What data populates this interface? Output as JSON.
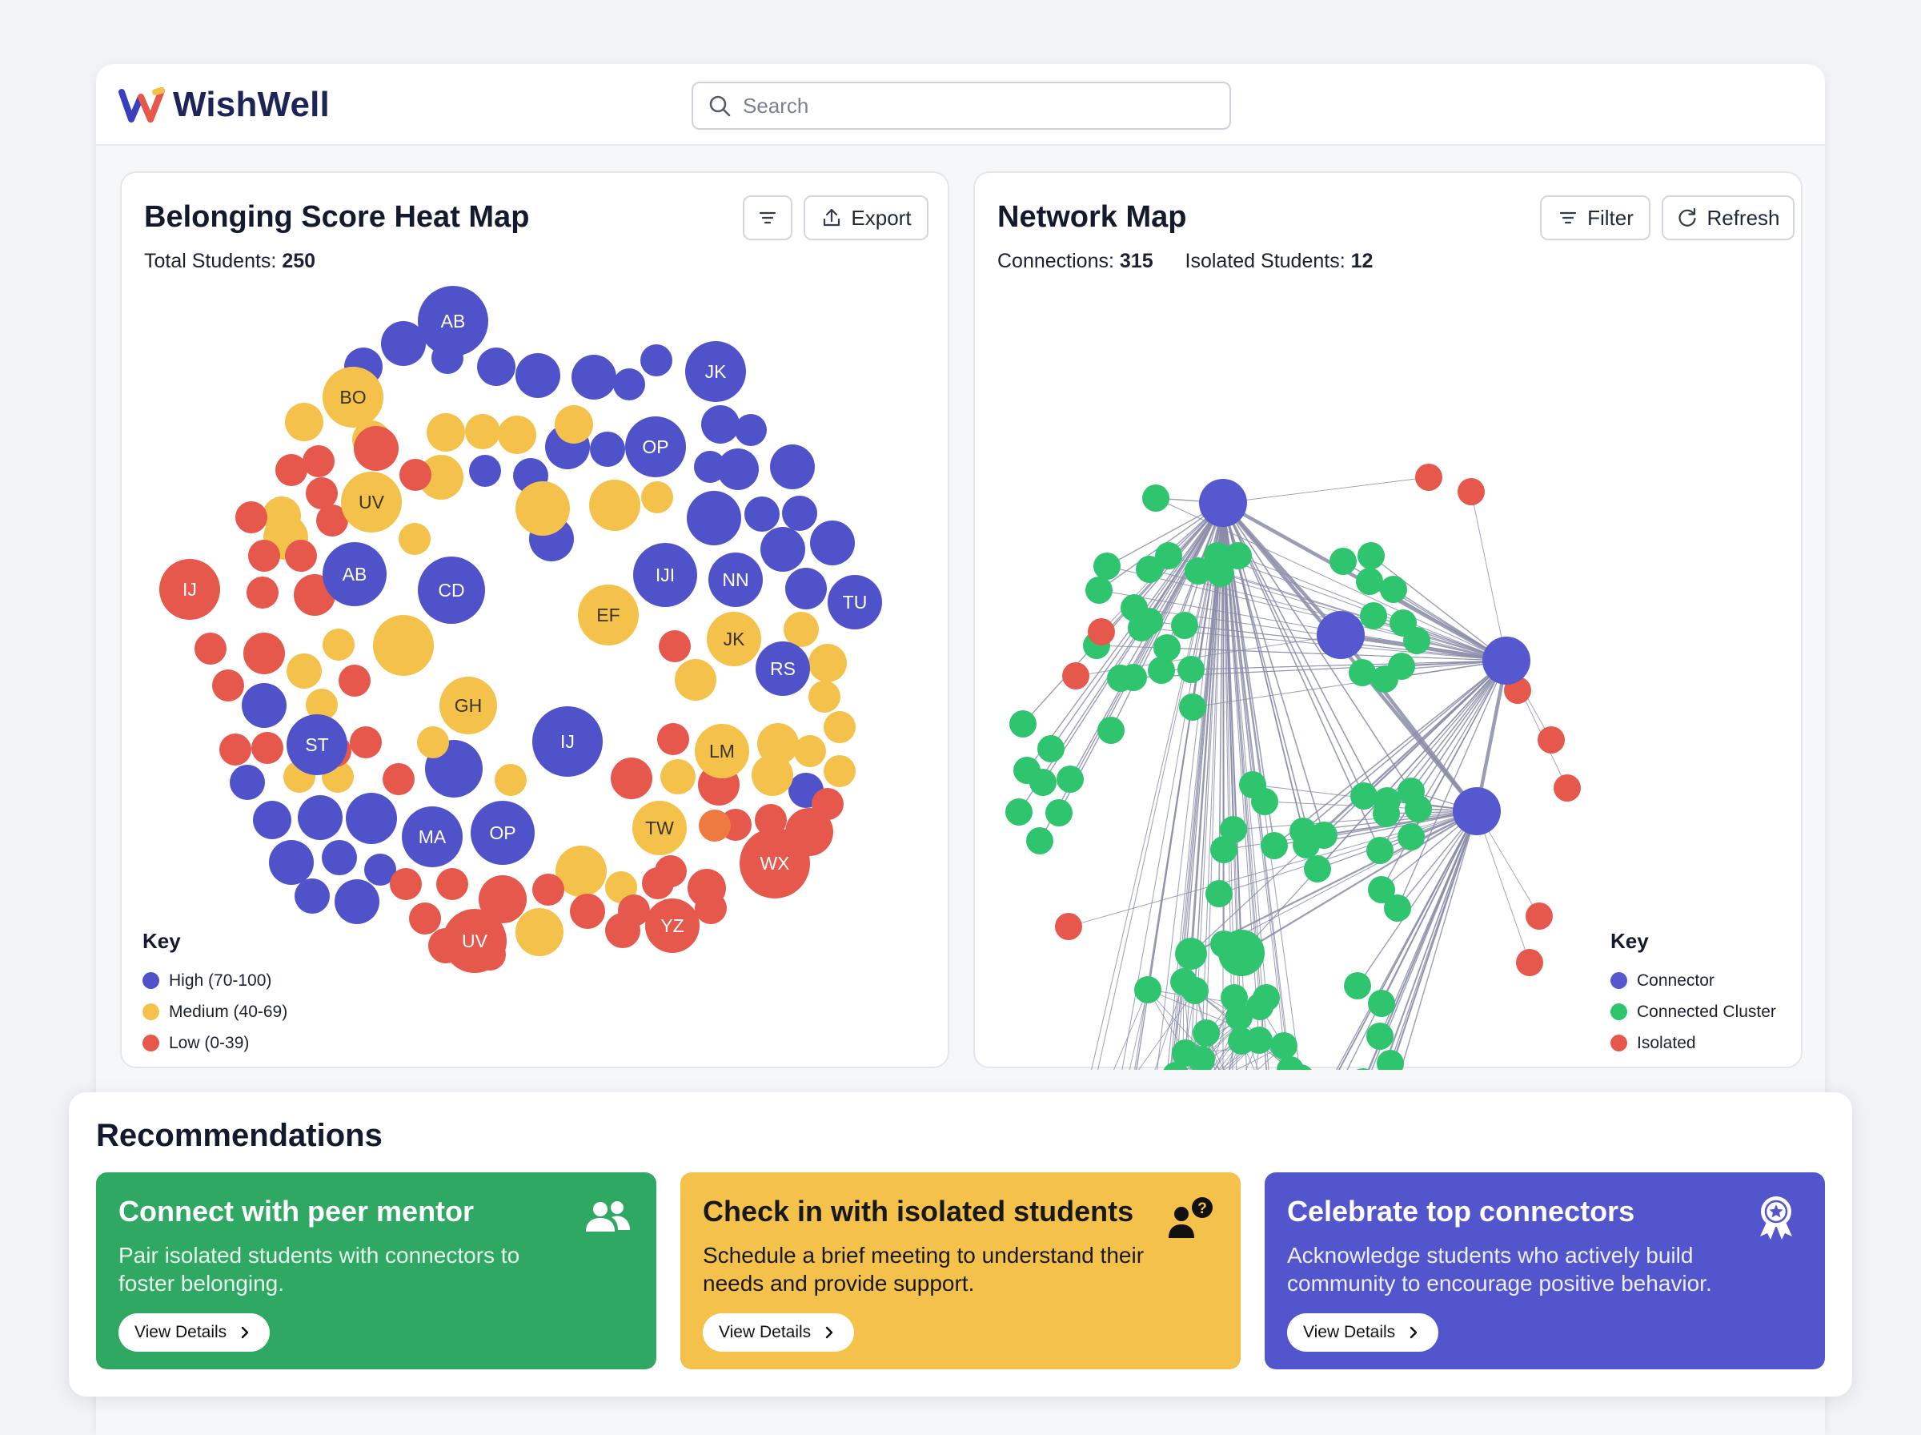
{
  "app": {
    "name": "WishWell"
  },
  "search": {
    "placeholder": "Search"
  },
  "colors": {
    "high": "#4f52c9",
    "medium": "#f4c24b",
    "low": "#e6574c",
    "connector": "#5558cf",
    "cluster": "#2fc56f",
    "isolated": "#e6574c",
    "edge": "#8a8ca8"
  },
  "heatmap": {
    "title": "Belonging Score Heat Map",
    "total_label": "Total Students:",
    "total_value": "250",
    "export_label": "Export",
    "filter_icon": "filter-icon",
    "labels": [
      "AB",
      "JK",
      "BO",
      "OP",
      "UV",
      "IJ",
      "AB",
      "CD",
      "IJI",
      "NN",
      "TU",
      "EF",
      "JK",
      "RS",
      "GH",
      "ST",
      "IJ",
      "LM",
      "MA",
      "OP",
      "TW",
      "WX",
      "YZ",
      "UV"
    ],
    "legend": {
      "title": "Key",
      "items": [
        {
          "label": "High (70-100)",
          "color": "#4f52c9"
        },
        {
          "label": "Medium (40-69)",
          "color": "#f4c24b"
        },
        {
          "label": "Low (0-39)",
          "color": "#e6574c"
        }
      ]
    }
  },
  "network": {
    "title": "Network Map",
    "connections_label": "Connections:",
    "connections_value": "315",
    "isolated_label": "Isolated Students:",
    "isolated_value": "12",
    "filter_label": "Filter",
    "refresh_label": "Refresh",
    "legend": {
      "title": "Key",
      "items": [
        {
          "label": "Connector",
          "color": "#5558cf"
        },
        {
          "label": "Connected Cluster",
          "color": "#2fc56f"
        },
        {
          "label": "Isolated",
          "color": "#e6574c"
        }
      ]
    }
  },
  "recommendations": {
    "title": "Recommendations",
    "cards": [
      {
        "title": "Connect with peer mentor",
        "desc": "Pair isolated students with connectors to foster belonging.",
        "button": "View Details",
        "icon": "users-icon"
      },
      {
        "title": "Check in with isolated students",
        "desc": "Schedule a brief meeting to understand their needs and provide support.",
        "button": "View Details",
        "icon": "user-question-icon"
      },
      {
        "title": "Celebrate top connectors",
        "desc": "Acknowledge students who actively build community to encourage positive behavior.",
        "button": "View Details",
        "icon": "award-ribbon-icon"
      }
    ]
  }
}
